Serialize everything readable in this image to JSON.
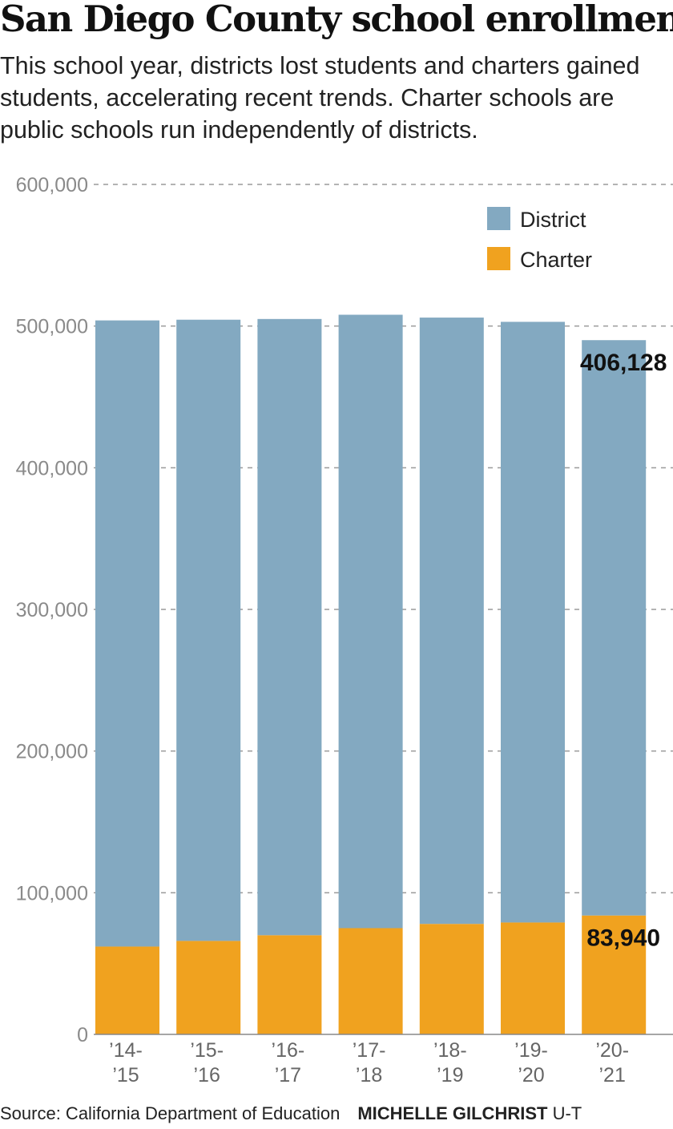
{
  "title": "San Diego County school enrollment",
  "subtitle": "This school year, districts lost students and charters gained students, accelerating recent trends. Charter schools are public schools run independently of districts.",
  "source": "Source: California Department of Education",
  "credit_name": "MICHELLE GILCHRIST",
  "credit_org": "U-T",
  "colors": {
    "district": "#83a9c1",
    "charter": "#f0a21f",
    "grid": "#9a9a9a"
  },
  "chart_data": {
    "type": "bar",
    "stacked": true,
    "categories": [
      [
        "’14-",
        "’15"
      ],
      [
        "’15-",
        "’16"
      ],
      [
        "’16-",
        "’17"
      ],
      [
        "’17-",
        "’18"
      ],
      [
        "’18-",
        "’19"
      ],
      [
        "’19-",
        "’20"
      ],
      [
        "’20-",
        "’21"
      ]
    ],
    "series": [
      {
        "name": "Charter",
        "values": [
          62000,
          66000,
          70000,
          75000,
          78000,
          79000,
          83940
        ]
      },
      {
        "name": "District",
        "values": [
          442000,
          438500,
          435000,
          433000,
          428000,
          424000,
          406128
        ]
      }
    ],
    "ylim": [
      0,
      600000
    ],
    "yticks": [
      0,
      100000,
      200000,
      300000,
      400000,
      500000,
      600000
    ],
    "ytick_labels": [
      "0",
      "100,000",
      "200,000",
      "300,000",
      "400,000",
      "500,000",
      "600,000"
    ],
    "grid": true,
    "legend_position": "top-right",
    "legend": [
      "District",
      "Charter"
    ],
    "annotations": [
      {
        "category_index": 6,
        "series": "District",
        "text": "406,128"
      },
      {
        "category_index": 6,
        "series": "Charter",
        "text": "83,940"
      }
    ]
  }
}
